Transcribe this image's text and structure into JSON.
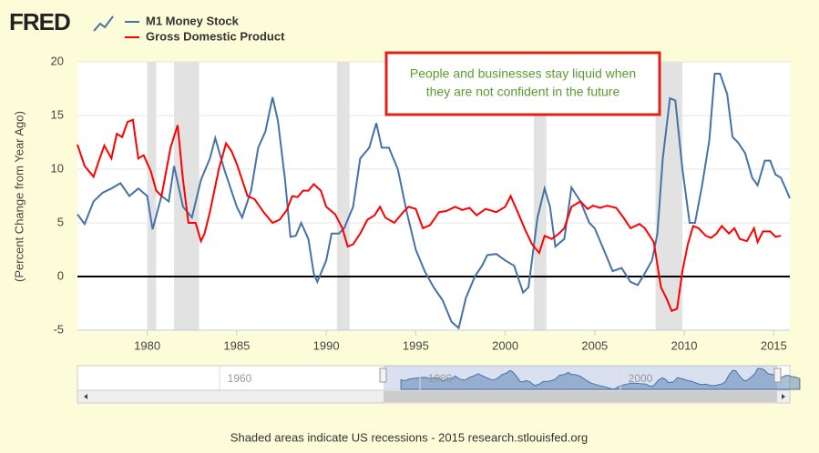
{
  "logo": "FRED",
  "footer": "Shaded areas indicate US recessions - 2015 research.stlouisfed.org",
  "chart_data": {
    "type": "line",
    "y_label": "(Percent Change from Year Ago)",
    "annotation": [
      "People and businesses stay liquid when",
      "they are not confident in the future"
    ],
    "xlim": [
      1976.1,
      2015.9
    ],
    "xticks": [
      1980,
      1985,
      1990,
      1995,
      2000,
      2005,
      2010,
      2015
    ],
    "ylim": [
      -5,
      20
    ],
    "yticks": [
      -5,
      0,
      5,
      10,
      15,
      20
    ],
    "grid": true,
    "recessions": [
      [
        1980.0,
        1980.5
      ],
      [
        1981.5,
        1982.9
      ],
      [
        1990.6,
        1991.3
      ],
      [
        2001.6,
        2002.3
      ],
      [
        2008.4,
        2009.9
      ]
    ],
    "navigator": {
      "xticks": [
        1960,
        1980,
        2000
      ]
    },
    "series": [
      {
        "name": "M1 Money Stock",
        "color": "#4572a7",
        "x": [
          1976.1,
          1976.5,
          1977,
          1977.5,
          1978,
          1978.5,
          1979,
          1979.5,
          1980,
          1980.3,
          1980.8,
          1981.2,
          1981.5,
          1982,
          1982.5,
          1983,
          1983.5,
          1983.8,
          1984.3,
          1985,
          1985.3,
          1985.8,
          1986.2,
          1986.6,
          1987,
          1987.3,
          1987.7,
          1988,
          1988.3,
          1988.6,
          1989,
          1989.3,
          1989.5,
          1990,
          1990.3,
          1990.7,
          1991,
          1991.5,
          1991.9,
          1992.4,
          1992.8,
          1993.1,
          1993.5,
          1994,
          1994.5,
          1995,
          1995.5,
          1996,
          1996.5,
          1997,
          1997.4,
          1997.8,
          1998.3,
          1998.7,
          1999,
          1999.5,
          2000,
          2000.5,
          2001,
          2001.3,
          2001.8,
          2002.2,
          2002.5,
          2002.8,
          2003.3,
          2003.7,
          2004.2,
          2004.7,
          2005,
          2005.5,
          2006,
          2006.5,
          2007,
          2007.4,
          2007.8,
          2008.2,
          2008.5,
          2008.8,
          2009.2,
          2009.5,
          2009.9,
          2010.3,
          2010.6,
          2011,
          2011.4,
          2011.7,
          2012,
          2012.4,
          2012.7,
          2013,
          2013.4,
          2013.8,
          2014.1,
          2014.5,
          2014.8,
          2015.1,
          2015.4,
          2015.9
        ],
        "values": [
          5.8,
          4.9,
          7,
          7.8,
          8.2,
          8.7,
          7.5,
          8.2,
          7.5,
          4.4,
          7.5,
          7,
          10.3,
          6.5,
          5.5,
          9,
          11,
          12.9,
          10,
          6.5,
          5.5,
          8,
          12,
          13.5,
          16.7,
          14.5,
          9,
          3.7,
          3.8,
          5,
          3.5,
          0.3,
          -0.5,
          1.5,
          4,
          4,
          4.5,
          6.5,
          11,
          12,
          14.3,
          12,
          12,
          10,
          6,
          2.5,
          0.5,
          -1,
          -2.2,
          -4.2,
          -4.8,
          -2,
          0,
          1,
          2,
          2.1,
          1.5,
          1,
          -1.5,
          -1,
          5.5,
          8.2,
          6.5,
          2.8,
          3.5,
          8.3,
          7,
          5,
          4.5,
          2.5,
          0.5,
          0.8,
          -0.5,
          -0.8,
          0.3,
          1.5,
          4,
          11,
          16.6,
          16.4,
          10,
          5,
          5,
          8.5,
          12.7,
          18.9,
          18.9,
          17,
          13,
          12.5,
          11.5,
          9.2,
          8.5,
          10.8,
          10.8,
          9.5,
          9.2,
          7.3
        ]
      },
      {
        "name": "Gross Domestic Product",
        "color": "#ff0000",
        "x": [
          1976.1,
          1976.5,
          1977,
          1977.3,
          1977.6,
          1978,
          1978.3,
          1978.6,
          1978.9,
          1979.2,
          1979.5,
          1979.8,
          1980.2,
          1980.5,
          1980.8,
          1981.3,
          1981.7,
          1982,
          1982.3,
          1982.7,
          1983,
          1983.2,
          1983.5,
          1984,
          1984.4,
          1984.7,
          1985,
          1985.3,
          1985.6,
          1986,
          1986.5,
          1987,
          1987.4,
          1987.8,
          1988.1,
          1988.4,
          1988.7,
          1989,
          1989.3,
          1989.7,
          1990,
          1990.5,
          1990.9,
          1991.2,
          1991.5,
          1991.9,
          1992.3,
          1992.7,
          1993,
          1993.3,
          1993.8,
          1994.3,
          1994.6,
          1995,
          1995.4,
          1995.8,
          1996.3,
          1996.7,
          1997.2,
          1997.6,
          1998,
          1998.4,
          1998.9,
          1999.5,
          2000,
          2000.3,
          2000.7,
          2001.1,
          2001.5,
          2001.9,
          2002.2,
          2002.6,
          2003,
          2003.3,
          2003.7,
          2004.2,
          2004.6,
          2004.9,
          2005.3,
          2005.7,
          2006.2,
          2006.6,
          2007,
          2007.5,
          2007.8,
          2008.3,
          2008.7,
          2009,
          2009.3,
          2009.6,
          2009.9,
          2010.2,
          2010.5,
          2010.8,
          2011.2,
          2011.5,
          2011.8,
          2012.1,
          2012.5,
          2012.8,
          2013.1,
          2013.5,
          2013.9,
          2014.1,
          2014.4,
          2014.8,
          2015.1,
          2015.4
        ],
        "values": [
          12.3,
          10.3,
          9.3,
          10.8,
          12.2,
          11,
          13.3,
          13,
          14.4,
          14.6,
          11,
          11.3,
          9.8,
          8,
          7.5,
          12,
          14.1,
          9,
          5,
          5,
          3.3,
          4,
          6,
          10,
          12.4,
          11.7,
          10.5,
          9,
          7.5,
          7.2,
          6,
          5,
          5.3,
          6.2,
          7.5,
          7.4,
          8,
          8,
          8.6,
          8,
          6.5,
          5.8,
          4.5,
          2.8,
          3,
          4,
          5.3,
          5.7,
          6.5,
          5.5,
          5,
          6,
          6.5,
          6.3,
          4.5,
          4.8,
          6,
          6.1,
          6.5,
          6.2,
          6.4,
          5.7,
          6.3,
          6,
          6.5,
          7.5,
          6,
          4.4,
          3,
          2.2,
          3.8,
          3.5,
          4,
          4.5,
          6.5,
          7,
          6.3,
          6.6,
          6.4,
          6.6,
          6.4,
          5.5,
          4.5,
          4.9,
          4.5,
          3.2,
          -1,
          -2,
          -3.2,
          -3,
          0.5,
          3,
          4.7,
          4.5,
          3.8,
          3.6,
          4,
          4.7,
          4,
          4.5,
          3.5,
          3.3,
          4.5,
          3.2,
          4.2,
          4.2,
          3.7,
          3.8
        ]
      }
    ]
  }
}
